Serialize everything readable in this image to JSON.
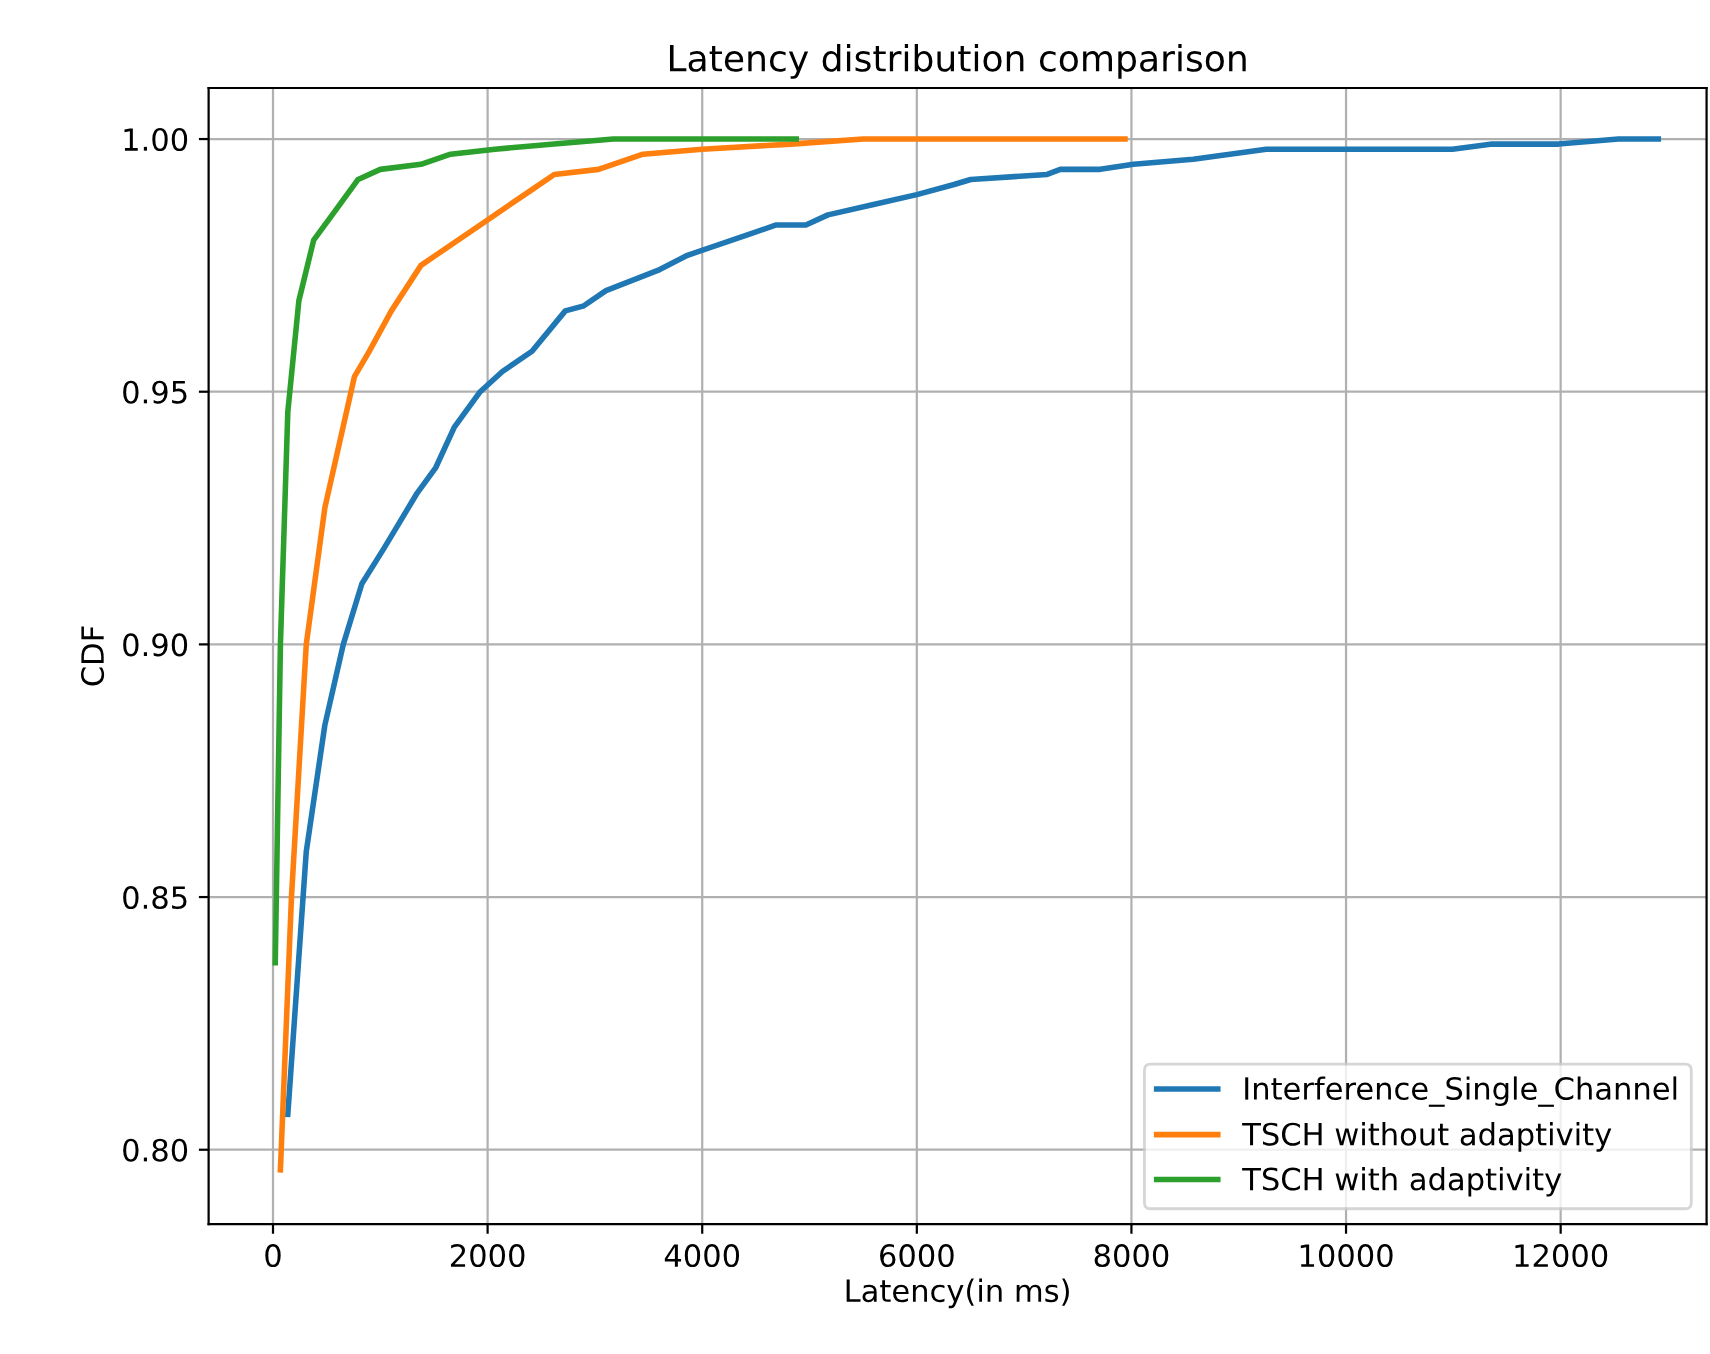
{
  "chart_data": {
    "type": "line",
    "title": "Latency distribution comparison",
    "xlabel": "Latency(in ms)",
    "ylabel": "CDF",
    "xlim": [
      -600,
      13360
    ],
    "ylim": [
      0.7853,
      1.0101
    ],
    "xticks": [
      0,
      2000,
      4000,
      6000,
      8000,
      10000,
      12000
    ],
    "yticks": [
      {
        "value": 0.8,
        "label": "0.80"
      },
      {
        "value": 0.85,
        "label": "0.85"
      },
      {
        "value": 0.9,
        "label": "0.90"
      },
      {
        "value": 0.95,
        "label": "0.95"
      },
      {
        "value": 1.0,
        "label": "1.00"
      }
    ],
    "grid": true,
    "legend": "bottom right",
    "series": [
      {
        "name": "Interference_Single_Channel",
        "color": "#1f77b4",
        "x": [
          138,
          310,
          483,
          655,
          828,
          1034,
          1345,
          1517,
          1690,
          1931,
          2138,
          2414,
          2724,
          2897,
          3103,
          3586,
          3862,
          4414,
          4690,
          4966,
          5172,
          5586,
          6000,
          6347,
          6502,
          7214,
          7337,
          7709,
          8019,
          8576,
          9257,
          10000,
          10991,
          11362,
          11981,
          12539,
          12910
        ],
        "values": [
          0.807,
          0.859,
          0.884,
          0.9,
          0.912,
          0.919,
          0.93,
          0.935,
          0.943,
          0.95,
          0.954,
          0.958,
          0.966,
          0.967,
          0.97,
          0.974,
          0.977,
          0.981,
          0.983,
          0.983,
          0.985,
          0.987,
          0.989,
          0.991,
          0.992,
          0.993,
          0.994,
          0.994,
          0.995,
          0.996,
          0.998,
          0.998,
          0.998,
          0.999,
          0.999,
          1.0,
          1.0
        ]
      },
      {
        "name": "TSCH without adaptivity",
        "color": "#ff7f0e",
        "x": [
          69,
          172,
          310,
          483,
          759,
          897,
          1103,
          1379,
          1517,
          1931,
          2414,
          2621,
          3034,
          3448,
          4000,
          4828,
          5500,
          7940
        ],
        "values": [
          0.796,
          0.85,
          0.9,
          0.927,
          0.953,
          0.958,
          0.966,
          0.975,
          0.977,
          0.983,
          0.99,
          0.993,
          0.994,
          0.997,
          0.998,
          0.999,
          1.0,
          1.0
        ]
      },
      {
        "name": "TSCH with adaptivity",
        "color": "#2ca02c",
        "x": [
          21,
          69,
          138,
          241,
          379,
          552,
          793,
          1000,
          1379,
          1655,
          2069,
          2621,
          3172,
          4876
        ],
        "values": [
          0.837,
          0.9,
          0.946,
          0.968,
          0.98,
          0.985,
          0.992,
          0.994,
          0.995,
          0.997,
          0.998,
          0.999,
          1.0,
          1.0
        ]
      }
    ]
  }
}
